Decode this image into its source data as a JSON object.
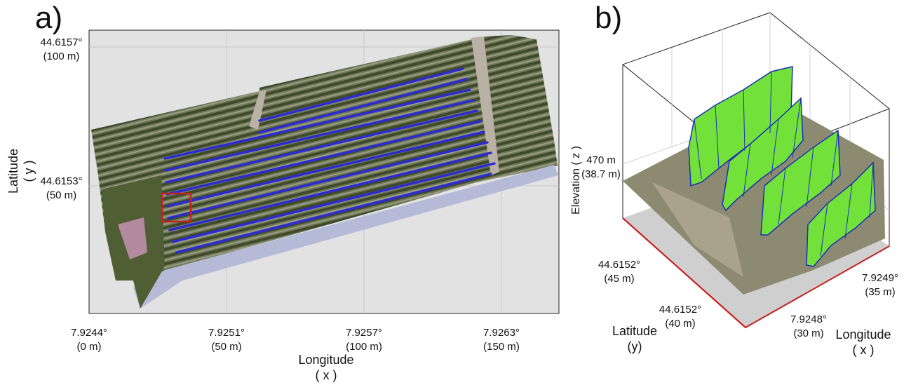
{
  "panel_a": {
    "letter": "a)",
    "y_ticks": [
      {
        "coord": "44.6157°",
        "dist": "(100 m)"
      },
      {
        "coord": "44.6153°",
        "dist": "(50 m)"
      }
    ],
    "x_ticks": [
      {
        "coord": "7.9244°",
        "dist": "(0 m)"
      },
      {
        "coord": "7.9251°",
        "dist": "(50 m)"
      },
      {
        "coord": "7.9257°",
        "dist": "(100 m)"
      },
      {
        "coord": "7.9263°",
        "dist": "(150 m)"
      }
    ],
    "x_title": {
      "line1": "Longitude",
      "line2": "( x )"
    },
    "y_title": {
      "line1": "Latitude",
      "line2": "( y )"
    }
  },
  "panel_b": {
    "letter": "b)",
    "z_tick": {
      "coord": "470 m",
      "dist": "(38.7 m)"
    },
    "z_title": "Elevation ( z )",
    "lat_ticks": [
      {
        "coord": "44.6152°",
        "dist": "(45 m)"
      },
      {
        "coord": "44.6152°",
        "dist": "(40 m)"
      }
    ],
    "lon_ticks": [
      {
        "coord": "7.9249°",
        "dist": "(35 m)"
      },
      {
        "coord": "7.9248°",
        "dist": "(30 m)"
      }
    ],
    "lat_title": {
      "line1": "Latitude",
      "line2": "(y)"
    },
    "lon_title": {
      "line1": "Longitude",
      "line2": "( x )"
    }
  },
  "colors": {
    "plot_bg": "#e2e2e2",
    "row_trace": "#2a2ad8",
    "canopy_mesh": "#72e23a",
    "mesh_edges": "#1a2fb5",
    "roi_box": "#c62020",
    "ground_frame": "#c62020"
  }
}
